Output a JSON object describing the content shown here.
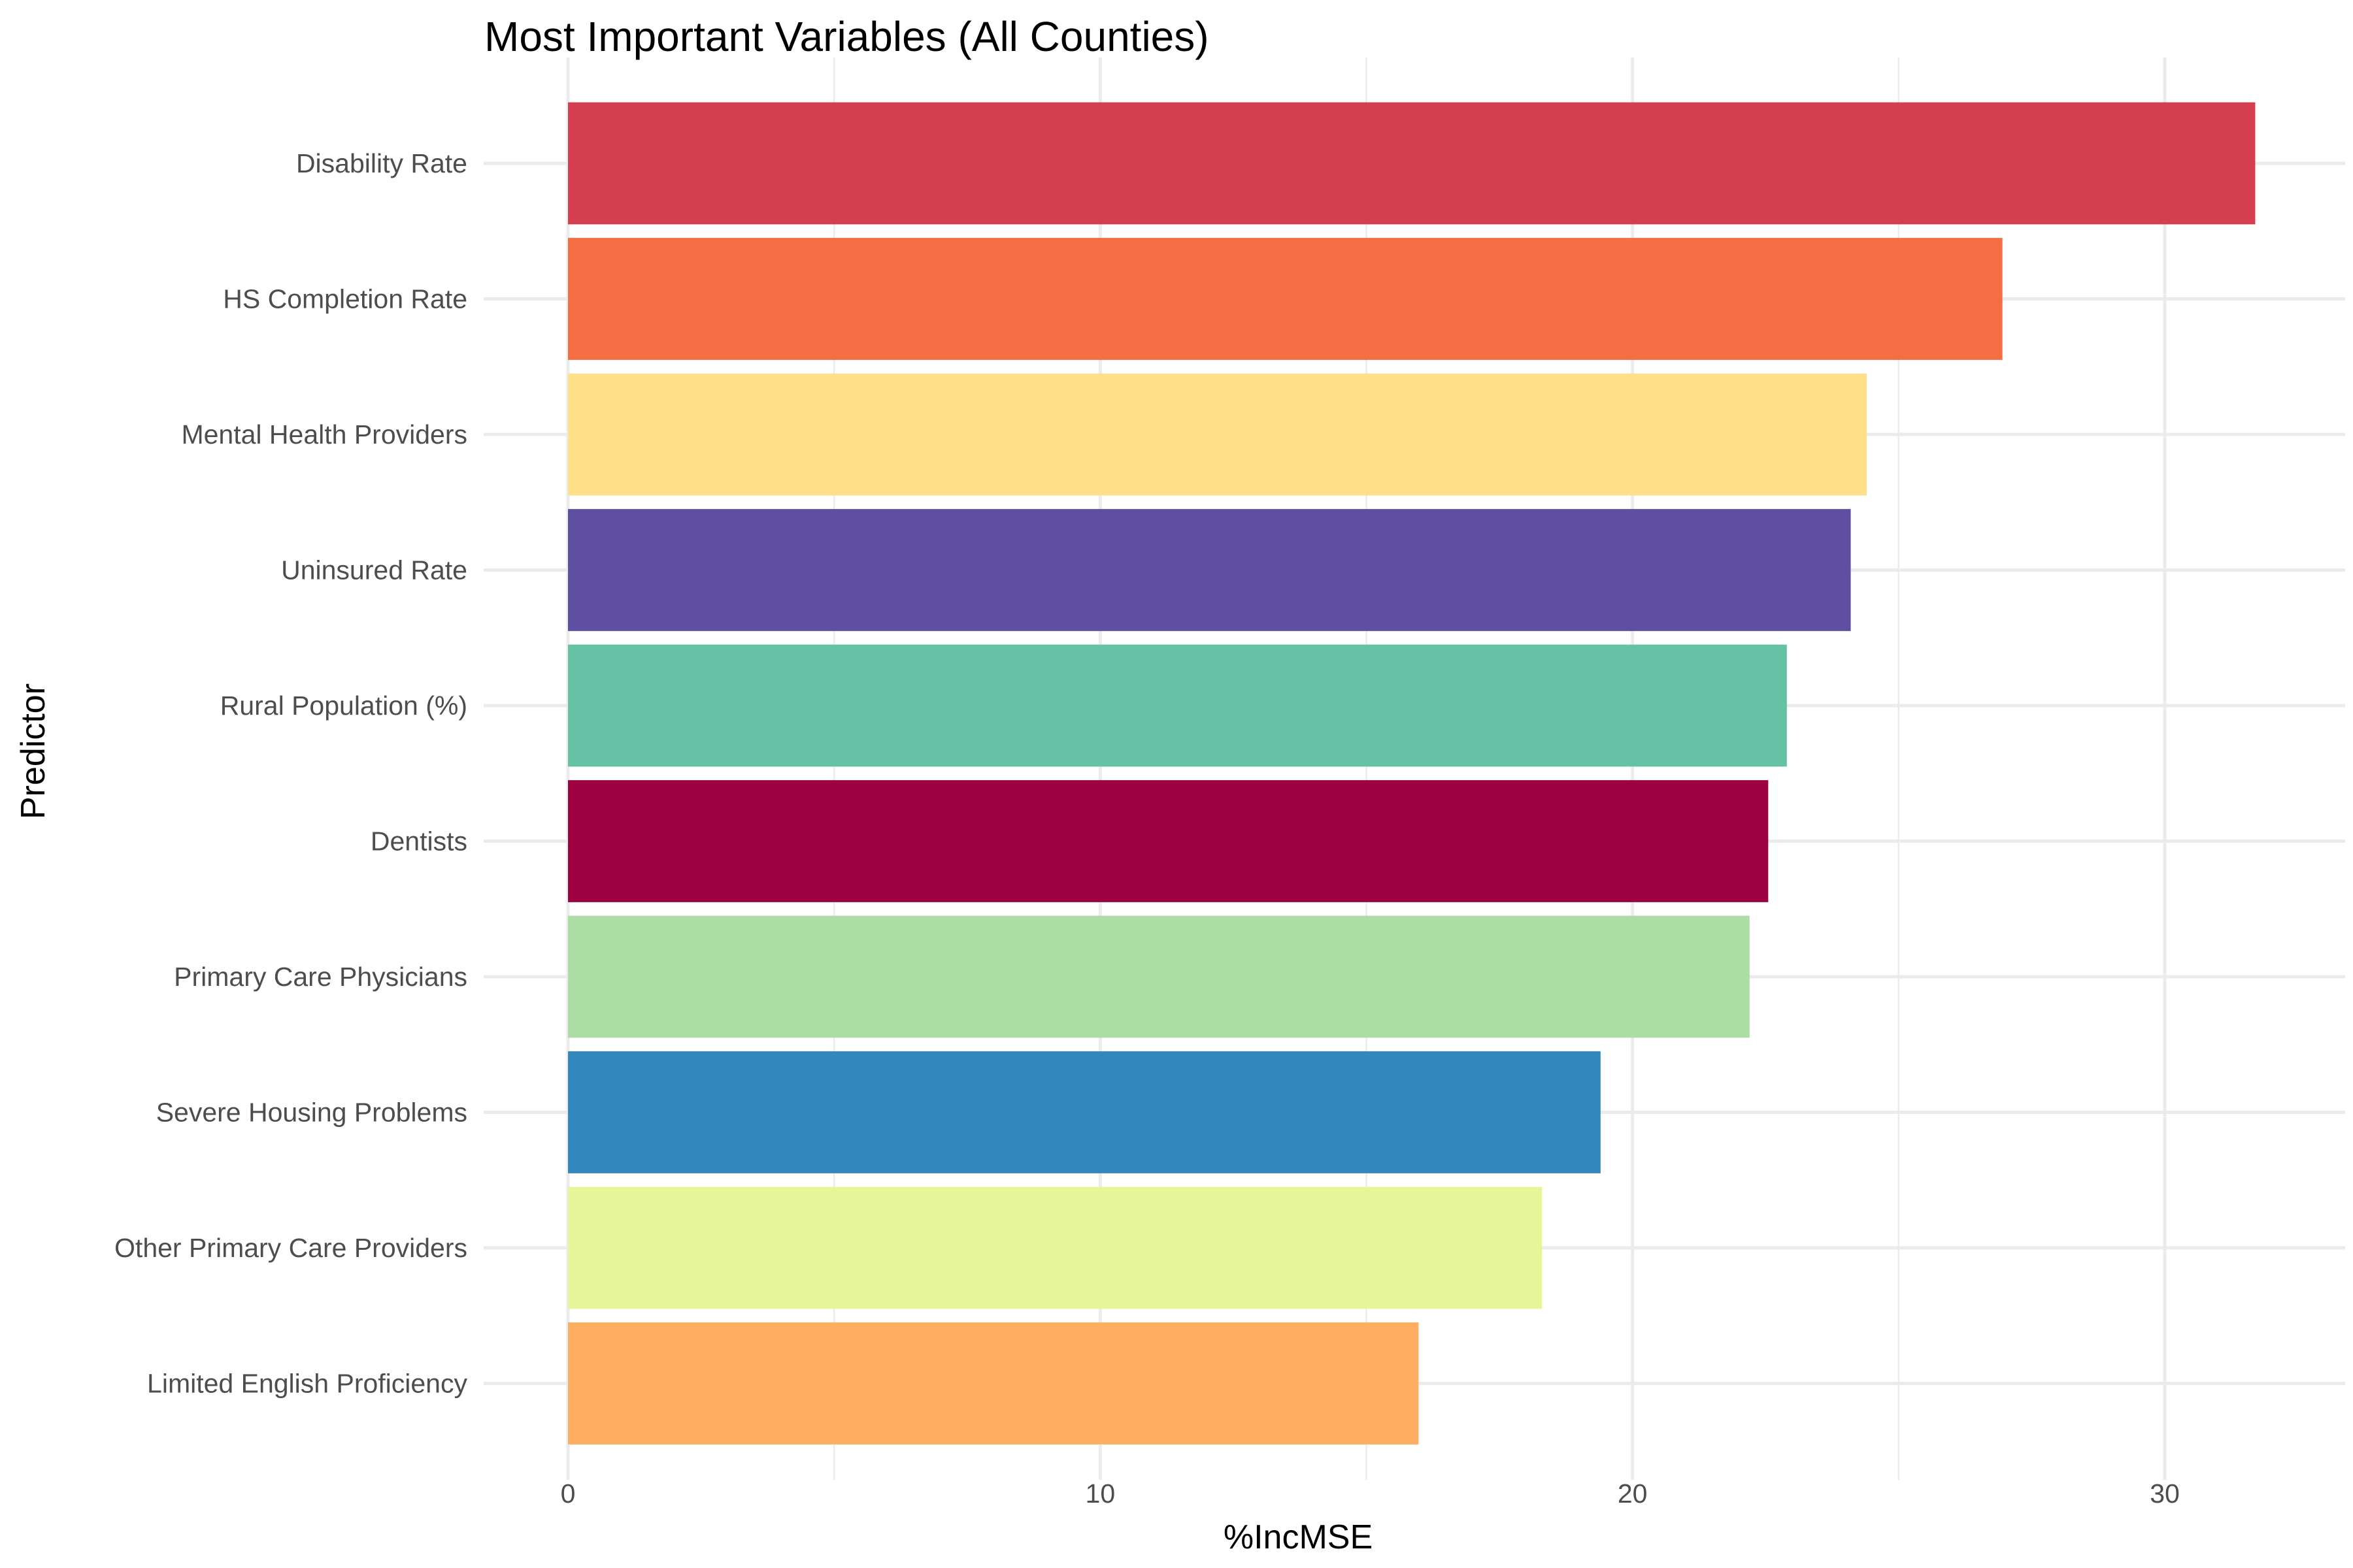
{
  "chart_data": {
    "type": "bar",
    "orientation": "horizontal",
    "title": "Most Important Variables (All Counties)",
    "xlabel": "%IncMSE",
    "ylabel": "Predictor",
    "xlim": [
      0,
      33
    ],
    "x_ticks": [
      0,
      10,
      20,
      30
    ],
    "grid": true,
    "legend": "none",
    "categories": [
      "Disability Rate",
      "HS Completion Rate",
      "Mental Health Providers",
      "Uninsured Rate",
      "Rural Population (%)",
      "Dentists",
      "Primary Care Physicians",
      "Severe Housing Problems",
      "Other Primary Care Providers",
      "Limited English Proficiency"
    ],
    "values": [
      31.7,
      26.95,
      24.4,
      24.1,
      22.9,
      22.55,
      22.2,
      19.4,
      18.3,
      15.98
    ],
    "colors": [
      "#D53E4F",
      "#F46D43",
      "#FEE08B",
      "#5E4FA2",
      "#66C2A5",
      "#9E0142",
      "#ABDDA4",
      "#3288BD",
      "#E6F598",
      "#FDAE61"
    ]
  }
}
